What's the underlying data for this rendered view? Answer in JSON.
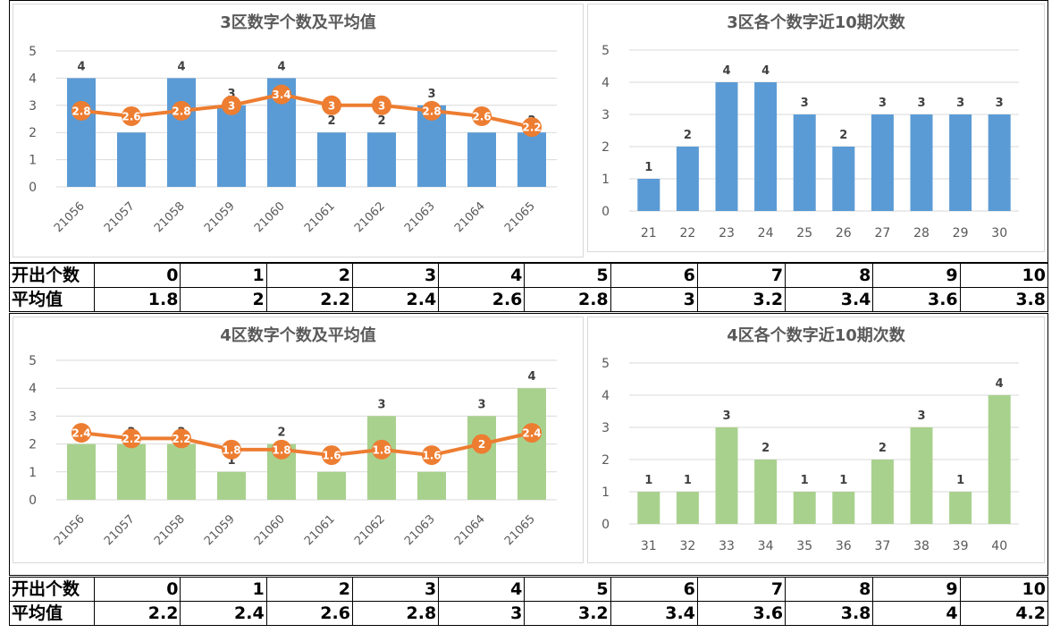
{
  "charts": [
    {
      "type": "bar-line",
      "title": "3区数字个数及平均值",
      "categories": [
        "21056",
        "21057",
        "21058",
        "21059",
        "21060",
        "21061",
        "21062",
        "21063",
        "21064",
        "21065"
      ],
      "bar_values": [
        4,
        2,
        4,
        3,
        4,
        2,
        2,
        3,
        2,
        2
      ],
      "line_values": [
        2.8,
        2.6,
        2.8,
        3,
        3.4,
        3,
        3,
        2.8,
        2.6,
        2.2
      ],
      "ylim": [
        0,
        5
      ],
      "bar_color": "#5b9bd5",
      "line_color": "#ed7d31"
    },
    {
      "type": "bar",
      "title": "3区各个数字近10期次数",
      "categories": [
        "21",
        "22",
        "23",
        "24",
        "25",
        "26",
        "27",
        "28",
        "29",
        "30"
      ],
      "values": [
        1,
        2,
        4,
        4,
        3,
        2,
        3,
        3,
        3,
        3
      ],
      "ylim": [
        0,
        5
      ],
      "bar_color": "#5b9bd5"
    },
    {
      "type": "bar-line",
      "title": "4区数字个数及平均值",
      "categories": [
        "21056",
        "21057",
        "21058",
        "21059",
        "21060",
        "21061",
        "21062",
        "21063",
        "21064",
        "21065"
      ],
      "bar_values": [
        2,
        2,
        2,
        1,
        2,
        1,
        3,
        1,
        3,
        4
      ],
      "line_values": [
        2.4,
        2.2,
        2.2,
        1.8,
        1.8,
        1.6,
        1.8,
        1.6,
        2,
        2.4
      ],
      "ylim": [
        0,
        5
      ],
      "bar_color": "#a9d18e",
      "line_color": "#ed7d31"
    },
    {
      "type": "bar",
      "title": "4区各个数字近10期次数",
      "categories": [
        "31",
        "32",
        "33",
        "34",
        "35",
        "36",
        "37",
        "38",
        "39",
        "40"
      ],
      "values": [
        1,
        1,
        3,
        2,
        1,
        1,
        2,
        3,
        1,
        4
      ],
      "ylim": [
        0,
        5
      ],
      "bar_color": "#a9d18e"
    }
  ],
  "tables": [
    {
      "count_label": "开出个数",
      "avg_label": "平均值",
      "counts": [
        "0",
        "1",
        "2",
        "3",
        "4",
        "5",
        "6",
        "7",
        "8",
        "9",
        "10"
      ],
      "averages": [
        "1.8",
        "2",
        "2.2",
        "2.4",
        "2.6",
        "2.8",
        "3",
        "3.2",
        "3.4",
        "3.6",
        "3.8"
      ]
    },
    {
      "count_label": "开出个数",
      "avg_label": "平均值",
      "counts": [
        "0",
        "1",
        "2",
        "3",
        "4",
        "5",
        "6",
        "7",
        "8",
        "9",
        "10"
      ],
      "averages": [
        "2.2",
        "2.4",
        "2.6",
        "2.8",
        "3",
        "3.2",
        "3.4",
        "3.6",
        "3.8",
        "4",
        "4.2"
      ]
    }
  ]
}
